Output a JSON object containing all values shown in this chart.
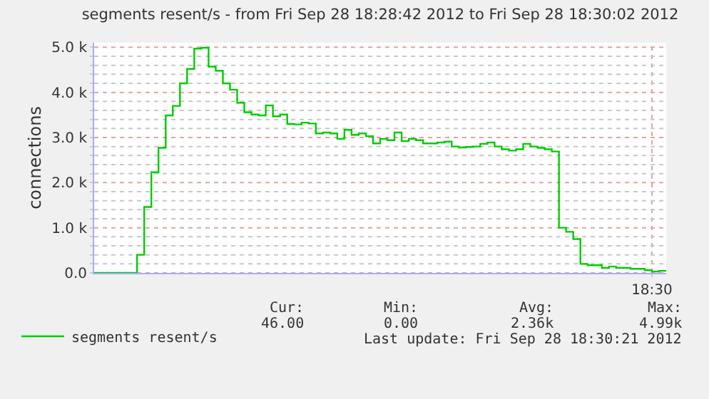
{
  "chart_data": {
    "type": "step",
    "title": "segments resent/s - from Fri Sep 28 18:28:42 2012 to Fri Sep 28 18:30:02 2012",
    "ylabel": "connections",
    "categories": [
      null,
      null,
      null,
      null,
      null,
      null,
      null,
      null,
      null,
      null,
      null,
      null,
      null,
      null,
      null,
      null,
      null,
      null,
      null,
      null,
      null,
      null,
      null,
      null,
      null,
      null,
      null,
      null,
      null,
      null,
      null,
      null,
      null,
      null,
      null,
      null,
      null,
      null,
      null,
      null,
      null,
      null,
      null,
      null,
      null,
      null,
      null,
      null,
      null,
      null,
      null,
      null,
      null,
      null,
      null,
      null,
      null,
      null,
      null,
      null,
      null,
      null,
      null,
      null,
      null,
      null,
      null,
      null,
      null,
      null,
      null,
      null,
      null,
      null,
      null,
      null,
      null,
      null,
      "18:30",
      null,
      null
    ],
    "series": [
      {
        "name": "segments resent/s",
        "color": "#00cc00",
        "values": [
          0,
          0,
          0,
          0,
          0,
          0,
          400,
          1460,
          2230,
          2770,
          3490,
          3700,
          4200,
          4520,
          4970,
          4990,
          4570,
          4480,
          4200,
          4060,
          3770,
          3560,
          3510,
          3490,
          3710,
          3470,
          3510,
          3300,
          3290,
          3330,
          3310,
          3090,
          3110,
          3090,
          2970,
          3170,
          3060,
          3090,
          3030,
          2870,
          2970,
          2940,
          3110,
          2920,
          2970,
          2940,
          2870,
          2870,
          2890,
          2910,
          2800,
          2780,
          2790,
          2800,
          2860,
          2890,
          2800,
          2740,
          2710,
          2740,
          2860,
          2800,
          2770,
          2740,
          2690,
          1000,
          910,
          750,
          200,
          170,
          170,
          110,
          140,
          110,
          110,
          90,
          90,
          60,
          30,
          46,
          46
        ]
      }
    ],
    "ylim": [
      0,
      5100
    ],
    "yticks": [
      {
        "value": 0,
        "label": "0.0"
      },
      {
        "value": 200,
        "label": null
      },
      {
        "value": 400,
        "label": null
      },
      {
        "value": 600,
        "label": null
      },
      {
        "value": 800,
        "label": null
      },
      {
        "value": 1000,
        "label": "1.0 k"
      },
      {
        "value": 1200,
        "label": null
      },
      {
        "value": 1400,
        "label": null
      },
      {
        "value": 1600,
        "label": null
      },
      {
        "value": 1800,
        "label": null
      },
      {
        "value": 2000,
        "label": "2.0 k"
      },
      {
        "value": 2200,
        "label": null
      },
      {
        "value": 2400,
        "label": null
      },
      {
        "value": 2600,
        "label": null
      },
      {
        "value": 2800,
        "label": null
      },
      {
        "value": 3000,
        "label": "3.0 k"
      },
      {
        "value": 3200,
        "label": null
      },
      {
        "value": 3400,
        "label": null
      },
      {
        "value": 3600,
        "label": null
      },
      {
        "value": 3800,
        "label": null
      },
      {
        "value": 4000,
        "label": "4.0 k"
      },
      {
        "value": 4200,
        "label": null
      },
      {
        "value": 4400,
        "label": null
      },
      {
        "value": 4600,
        "label": null
      },
      {
        "value": 4800,
        "label": null
      },
      {
        "value": 5000,
        "label": "5.0 k"
      }
    ],
    "grid": true,
    "legend": "bottom",
    "marker": "none",
    "line_style": "solid",
    "annotations": [
      "Cur:",
      "Min:",
      "Avg:",
      "Max:",
      "46.00",
      "0.00",
      "2.36k",
      "4.99k",
      "Last update: Fri Sep 28 18:30:21 2012"
    ]
  }
}
